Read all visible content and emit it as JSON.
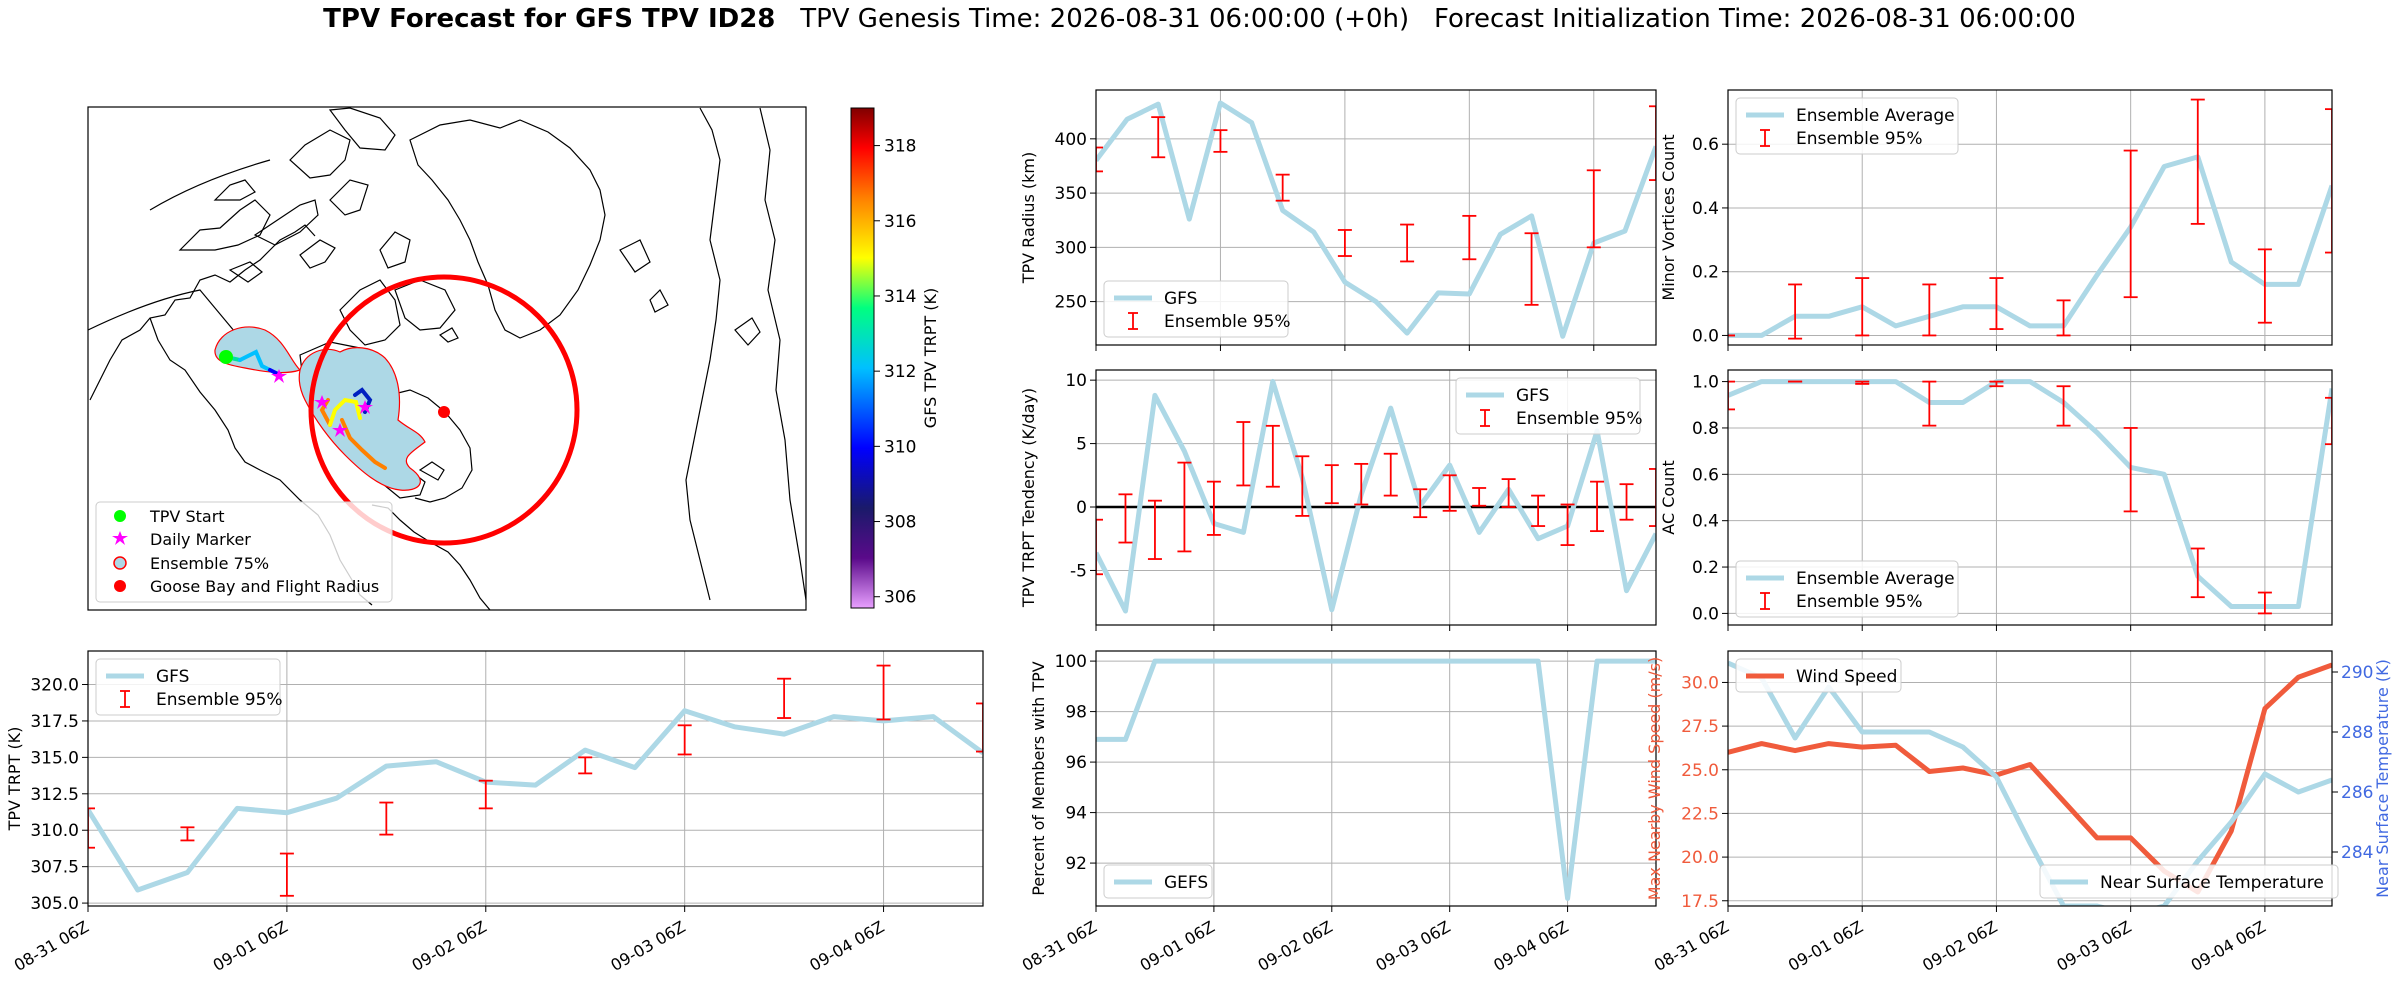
{
  "header": {
    "title_bold": "TPV Forecast for GFS TPV ID28",
    "genesis": "TPV Genesis Time: 2026-08-31 06:00:00 (+0h)",
    "init": "Forecast Initialization Time: 2026-08-31 06:00:00"
  },
  "colors": {
    "gfs": "#add8e6",
    "ensemble": "#ff0000",
    "wind": "#f05b3c",
    "temp_axis": "#4169e1",
    "goose": "#ff0000"
  },
  "map": {
    "legend": [
      {
        "label": "TPV Start",
        "symbol": "circle",
        "color": "#00ff00"
      },
      {
        "label": "Daily Marker",
        "symbol": "star",
        "color": "#ff00ff"
      },
      {
        "label": "Ensemble 75%",
        "symbol": "patch",
        "color": "#add8e6"
      },
      {
        "label": "Goose Bay and Flight Radius",
        "symbol": "circle",
        "color": "#ff0000"
      }
    ],
    "colorbar": {
      "label": "GFS TPV TRPT (K)",
      "ticks": [
        306,
        308,
        310,
        312,
        314,
        316,
        318
      ],
      "min": 305.7,
      "max": 319
    }
  },
  "time_ticks": [
    "08-31 06Z",
    "09-01 06Z",
    "09-02 06Z",
    "09-03 06Z",
    "09-04 06Z"
  ],
  "chart_data": [
    {
      "id": "radius",
      "type": "line",
      "ylabel": "TPV Radius (km)",
      "ylim": [
        210,
        445
      ],
      "yticks": [
        250,
        300,
        350,
        400
      ],
      "legend_loc": "lower-left",
      "series": [
        {
          "name": "GFS",
          "values": [
            380,
            418,
            432,
            326,
            433,
            415,
            334,
            314,
            268,
            250,
            221,
            258,
            257,
            312,
            329,
            218,
            304,
            315,
            393
          ]
        }
      ],
      "errorbars": {
        "name": "Ensemble 95%",
        "x": [
          0,
          2,
          4,
          6,
          8,
          10,
          12,
          14,
          16,
          18
        ],
        "low": [
          370,
          383,
          388,
          343,
          292,
          287,
          289,
          247,
          300,
          362
        ],
        "high": [
          392,
          420,
          408,
          367,
          316,
          321,
          329,
          313,
          371,
          430
        ]
      }
    },
    {
      "id": "minor",
      "type": "line",
      "ylabel": "Minor Vortices Count",
      "ylim": [
        -0.03,
        0.77
      ],
      "yticks": [
        0.0,
        0.2,
        0.4,
        0.6
      ],
      "legend_loc": "upper-left",
      "series": [
        {
          "name": "Ensemble Average",
          "values": [
            0.0,
            0.0,
            0.06,
            0.06,
            0.09,
            0.03,
            0.06,
            0.09,
            0.09,
            0.03,
            0.03,
            0.19,
            0.34,
            0.53,
            0.56,
            0.23,
            0.16,
            0.16,
            0.47
          ]
        }
      ],
      "errorbars": {
        "name": "Ensemble 95%",
        "x": [
          0,
          2,
          4,
          6,
          8,
          10,
          12,
          14,
          16,
          18
        ],
        "low": [
          0.0,
          -0.01,
          0.0,
          0.0,
          0.02,
          0.0,
          0.12,
          0.35,
          0.04,
          0.26
        ],
        "high": [
          0.0,
          0.16,
          0.18,
          0.16,
          0.18,
          0.11,
          0.58,
          0.74,
          0.27,
          0.71
        ]
      }
    },
    {
      "id": "tendency",
      "type": "line",
      "ylabel": "TPV TRPT Tendency (K/day)",
      "ylim": [
        -9.3,
        10.8
      ],
      "yticks": [
        -5,
        0,
        5,
        10
      ],
      "legend_loc": "upper-right",
      "zero_line": true,
      "series": [
        {
          "name": "GFS",
          "values": [
            -3.6,
            -8.2,
            8.8,
            4.4,
            -1.3,
            -2.0,
            9.9,
            2.3,
            -8.1,
            1.0,
            7.8,
            0.1,
            3.3,
            -2.0,
            1.4,
            -2.5,
            -1.5,
            6.0,
            -6.6,
            -2.1
          ]
        }
      ],
      "errorbars": {
        "name": "Ensemble 95%",
        "x": [
          0,
          1,
          2,
          3,
          4,
          5,
          6,
          7,
          8,
          9,
          10,
          11,
          12,
          13,
          14,
          15,
          16,
          17,
          18,
          19
        ],
        "low": [
          -5.3,
          -2.8,
          -4.1,
          -3.5,
          -2.2,
          1.7,
          1.6,
          -0.7,
          0.3,
          0.2,
          0.9,
          -0.8,
          -0.3,
          0.1,
          0.0,
          -1.5,
          -3.0,
          -1.9,
          -1.0,
          -1.5
        ],
        "high": [
          -1.0,
          1.0,
          0.5,
          3.5,
          2.0,
          6.7,
          6.4,
          4.0,
          3.3,
          3.4,
          4.2,
          1.4,
          2.5,
          1.5,
          2.2,
          0.9,
          0.2,
          2.0,
          1.8,
          3.0
        ]
      }
    },
    {
      "id": "ac",
      "type": "line",
      "ylabel": "AC Count",
      "ylim": [
        -0.05,
        1.05
      ],
      "yticks": [
        0.0,
        0.2,
        0.4,
        0.6,
        0.8,
        1.0
      ],
      "legend_loc": "lower-left",
      "series": [
        {
          "name": "Ensemble Average",
          "values": [
            0.94,
            1.0,
            1.0,
            1.0,
            1.0,
            1.0,
            0.91,
            0.91,
            1.0,
            1.0,
            0.91,
            0.78,
            0.63,
            0.6,
            0.16,
            0.03,
            0.03,
            0.03,
            0.97
          ]
        }
      ],
      "errorbars": {
        "name": "Ensemble 95%",
        "x": [
          0,
          2,
          4,
          6,
          8,
          10,
          12,
          14,
          16,
          18
        ],
        "low": [
          0.88,
          1.0,
          0.99,
          0.81,
          0.98,
          0.81,
          0.44,
          0.07,
          0.0,
          0.73
        ],
        "high": [
          1.0,
          1.0,
          1.0,
          1.0,
          1.0,
          0.98,
          0.8,
          0.28,
          0.09,
          0.93
        ]
      }
    },
    {
      "id": "trpt",
      "type": "line",
      "ylabel": "TPV TRPT (K)",
      "ylim": [
        304.8,
        322.3
      ],
      "yticks": [
        305.0,
        307.5,
        310.0,
        312.5,
        315.0,
        317.5,
        320.0
      ],
      "legend_loc": "upper-left",
      "series": [
        {
          "name": "GFS",
          "values": [
            311.4,
            305.9,
            307.1,
            311.5,
            311.2,
            312.2,
            314.4,
            314.7,
            313.3,
            313.1,
            315.5,
            314.3,
            318.2,
            317.1,
            316.6,
            317.8,
            317.5,
            317.8,
            315.3
          ]
        }
      ],
      "errorbars": {
        "name": "Ensemble 95%",
        "x": [
          0,
          2,
          4,
          6,
          8,
          10,
          12,
          14,
          16,
          18
        ],
        "low": [
          308.8,
          309.3,
          305.5,
          309.7,
          311.5,
          313.9,
          315.2,
          317.7,
          317.6,
          315.4
        ],
        "high": [
          311.5,
          310.2,
          308.4,
          311.9,
          313.4,
          315.0,
          317.2,
          320.4,
          321.3,
          318.7
        ]
      }
    },
    {
      "id": "percent",
      "type": "line",
      "ylabel": "Percent of Members with TPV",
      "ylim": [
        90.3,
        100.4
      ],
      "yticks": [
        92,
        94,
        96,
        98,
        100
      ],
      "legend_loc": "lower-left",
      "series": [
        {
          "name": "GEFS",
          "values": [
            96.9,
            96.9,
            100,
            100,
            100,
            100,
            100,
            100,
            100,
            100,
            100,
            100,
            100,
            100,
            100,
            100,
            90.6,
            100,
            100,
            100
          ]
        }
      ]
    },
    {
      "id": "wind",
      "type": "line",
      "ylabel": "Max Nearby Wind Speed (m/s)",
      "y2label": "Near Surface Temperature (K)",
      "ylim": [
        17.2,
        31.8
      ],
      "yticks": [
        17.5,
        20.0,
        22.5,
        25.0,
        27.5,
        30.0
      ],
      "y2lim": [
        282.2,
        290.7
      ],
      "y2ticks": [
        284,
        286,
        288,
        290
      ],
      "series": [
        {
          "name": "Wind Speed",
          "axis": "left",
          "values": [
            26.0,
            26.5,
            26.1,
            26.5,
            26.3,
            26.4,
            24.9,
            25.1,
            24.7,
            25.3,
            23.2,
            21.1,
            21.1,
            19.2,
            18.0,
            21.5,
            28.5,
            30.3,
            31.0
          ]
        },
        {
          "name": "Near Surface Temperature",
          "axis": "right",
          "values": [
            290.3,
            289.8,
            287.8,
            289.5,
            288.0,
            288.0,
            288.0,
            287.5,
            286.5,
            284.3,
            282.2,
            282.2,
            281.9,
            282.2,
            283.7,
            285.0,
            286.6,
            286.0,
            286.4
          ]
        }
      ]
    }
  ]
}
